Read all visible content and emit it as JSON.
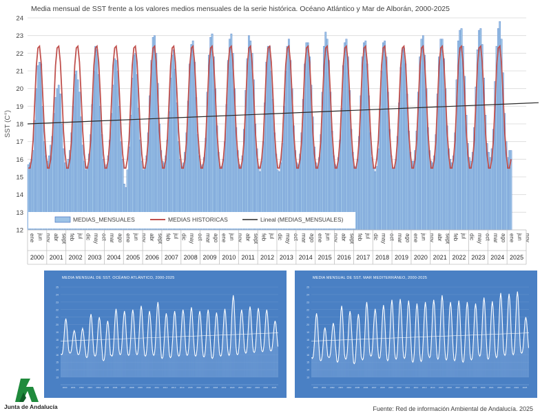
{
  "title": "Media mensual de SST frente a los valores medios mensuales de la serie histórica. Océano Atlántico y Mar de Alborán, 2000-2025",
  "source": "Fuente: Red de información Ambiental de Andalucía.  2025",
  "logo_text": "Junta de Andalucía",
  "colors": {
    "bars": "#9dc3e6",
    "bar_edge": "#4472c4",
    "hist": "#c0504d",
    "trend": "#262626",
    "panel_bg": "#4a80c4"
  },
  "chart_data": [
    {
      "type": "bar+line",
      "title": "Media mensual de SST frente a los valores medios mensuales de la serie histórica. Océano Atlántico y Mar de Alborán, 2000-2025",
      "ylabel": "SST (C°)",
      "ylim": [
        12,
        24
      ],
      "yticks": [
        "12",
        "13",
        "14",
        "15",
        "16",
        "17",
        "18",
        "19",
        "20",
        "21",
        "22",
        "23",
        "24"
      ],
      "grid": true,
      "legend_position": "bottom-left inside",
      "years": [
        "2000",
        "2001",
        "2002",
        "2003",
        "2004",
        "2005",
        "2006",
        "2007",
        "2008",
        "2009",
        "2010",
        "2011",
        "2012",
        "2013",
        "2014",
        "2015",
        "2016",
        "2017",
        "2018",
        "2019",
        "2020",
        "2021",
        "2022",
        "2023",
        "2024",
        "2025"
      ],
      "x_month_labels": [
        "ene",
        "jun",
        "nov",
        "abr",
        "sept",
        "feb",
        "jul",
        "dic",
        "may",
        "oct",
        "mar",
        "ago",
        "ene",
        "jun",
        "nov",
        "abr",
        "sept",
        "feb",
        "jul",
        "dic",
        "may",
        "oct",
        "mar",
        "ago",
        "ene",
        "jun",
        "nov",
        "abr",
        "sept",
        "feb",
        "jul",
        "dic",
        "may",
        "oct",
        "mar",
        "ago",
        "ene",
        "jun",
        "nov",
        "abr",
        "sept",
        "feb",
        "jul",
        "dic",
        "may",
        "oct",
        "mar",
        "ago",
        "ene",
        "jun",
        "nov",
        "abr",
        "sept",
        "feb",
        "jul",
        "dic",
        "may",
        "oct",
        "mar",
        "ago",
        "ene",
        "jun",
        "nov"
      ],
      "series": [
        {
          "name": "MEDIAS_MENSUALES",
          "kind": "bar",
          "monthly_values_by_year": [
            [
              15.7,
              15.8,
              16.0,
              16.5,
              18.2,
              20.0,
              21.3,
              21.5,
              21.4,
              19.0,
              17.0,
              16.2
            ],
            [
              15.9,
              16.2,
              16.8,
              17.3,
              18.6,
              19.5,
              20.0,
              20.2,
              19.7,
              18.0,
              16.6,
              15.8
            ],
            [
              15.5,
              16.0,
              16.5,
              17.5,
              19.0,
              20.8,
              21.0,
              20.5,
              19.8,
              18.4,
              16.8,
              15.9
            ],
            [
              15.4,
              15.6,
              16.3,
              17.4,
              19.1,
              21.0,
              22.4,
              22.2,
              20.8,
              19.0,
              17.4,
              16.0
            ],
            [
              15.5,
              15.7,
              16.2,
              17.1,
              18.6,
              20.2,
              21.7,
              21.6,
              21.0,
              19.0,
              17.0,
              16.0
            ],
            [
              14.6,
              14.4,
              15.4,
              16.7,
              18.5,
              20.6,
              21.9,
              22.0,
              20.8,
              18.9,
              17.1,
              15.9
            ],
            [
              15.4,
              15.5,
              16.2,
              17.5,
              19.6,
              21.6,
              22.9,
              23.0,
              22.0,
              20.3,
              18.0,
              16.5
            ],
            [
              15.9,
              15.8,
              16.2,
              17.1,
              18.7,
              20.6,
              21.9,
              22.2,
              21.1,
              19.2,
              17.0,
              16.0
            ],
            [
              15.6,
              15.8,
              16.4,
              17.5,
              19.3,
              21.4,
              22.5,
              22.7,
              21.5,
              19.5,
              17.4,
              16.2
            ],
            [
              15.6,
              15.7,
              16.1,
              17.2,
              19.8,
              21.9,
              22.9,
              23.1,
              21.8,
              20.0,
              17.9,
              16.4
            ],
            [
              15.5,
              15.6,
              16.0,
              17.0,
              19.1,
              21.6,
              22.8,
              23.1,
              22.0,
              20.0,
              17.8,
              16.5
            ],
            [
              15.7,
              15.6,
              16.2,
              17.7,
              19.9,
              21.7,
              23.0,
              22.7,
              22.0,
              20.5,
              18.0,
              16.6
            ],
            [
              15.6,
              15.3,
              15.9,
              17.0,
              19.2,
              21.5,
              22.4,
              22.4,
              21.0,
              19.4,
              17.5,
              16.3
            ],
            [
              15.4,
              15.3,
              15.8,
              16.9,
              19.0,
              21.0,
              22.4,
              22.8,
              21.6,
              20.0,
              17.9,
              16.5
            ],
            [
              15.8,
              15.7,
              16.3,
              17.5,
              19.4,
              21.4,
              22.6,
              22.6,
              21.8,
              20.2,
              18.4,
              16.7
            ],
            [
              15.8,
              15.6,
              16.1,
              17.4,
              19.8,
              22.4,
              23.2,
              22.8,
              21.6,
              19.8,
              17.6,
              16.2
            ],
            [
              15.7,
              15.6,
              16.1,
              17.1,
              18.9,
              21.3,
              22.6,
              22.8,
              21.8,
              19.9,
              17.7,
              16.4
            ],
            [
              15.6,
              15.5,
              16.0,
              17.3,
              19.6,
              21.8,
              22.6,
              22.7,
              21.4,
              19.6,
              17.5,
              16.1
            ],
            [
              15.5,
              15.3,
              15.6,
              16.6,
              18.8,
              21.0,
              22.6,
              22.7,
              21.8,
              19.8,
              17.7,
              16.2
            ],
            [
              15.5,
              15.5,
              16.0,
              17.3,
              19.2,
              21.2,
              22.2,
              22.3,
              21.4,
              19.7,
              17.6,
              16.4
            ],
            [
              15.9,
              15.9,
              16.5,
              17.6,
              19.8,
              21.8,
              22.8,
              23.0,
              21.9,
              20.0,
              17.8,
              16.5
            ],
            [
              15.9,
              15.8,
              16.2,
              17.4,
              19.7,
              21.8,
              22.8,
              22.8,
              21.7,
              20.0,
              17.9,
              16.6
            ],
            [
              16.0,
              15.8,
              16.2,
              17.5,
              20.5,
              22.7,
              23.3,
              23.4,
              22.4,
              20.7,
              18.5,
              16.9
            ],
            [
              16.1,
              15.9,
              16.4,
              17.8,
              20.1,
              22.2,
              23.3,
              23.4,
              22.5,
              20.6,
              18.5,
              16.9
            ],
            [
              16.4,
              16.1,
              16.6,
              17.7,
              20.4,
              22.4,
              23.4,
              23.8,
              22.8,
              20.9,
              18.6,
              17.0
            ],
            [
              16.1,
              16.5,
              16.5
            ]
          ]
        },
        {
          "name": "MEDIAS HISTORICAS",
          "kind": "line",
          "monthly_climatology": [
            15.5,
            15.5,
            16.0,
            17.1,
            19.2,
            21.3,
            22.3,
            22.4,
            21.5,
            19.7,
            17.6,
            16.3
          ]
        },
        {
          "name": "Lineal (MEDIAS_MENSUALES)",
          "kind": "trendline",
          "y_at_start": 18.0,
          "y_at_end": 19.2
        }
      ]
    },
    {
      "type": "line",
      "title": "MEDIA MENSUAL DE SST. OCÉANO ATLÁNTICO, 2000-2025",
      "min_by_year": [
        16.0,
        16.2,
        16.0,
        15.6,
        15.8,
        15.2,
        15.8,
        16.0,
        15.9,
        16.0,
        15.8,
        15.9,
        15.5,
        15.6,
        15.8,
        15.9,
        15.8,
        15.7,
        15.5,
        15.8,
        15.9,
        16.0,
        16.2,
        16.3,
        16.4,
        16.5
      ],
      "peak_by_year": [
        20.8,
        19.2,
        19.5,
        21.4,
        21.0,
        20.5,
        22.1,
        21.8,
        22.0,
        22.5,
        21.8,
        23.0,
        21.5,
        21.8,
        22.0,
        22.3,
        21.8,
        22.0,
        21.6,
        22.1,
        23.9,
        22.0,
        22.4,
        22.2,
        22.0,
        20.5
      ]
    },
    {
      "type": "line",
      "title": "MEDIA MENSUAL DE SST. MAR MEDITERRÁNEO, 2000-2025",
      "min_by_year": [
        15.5,
        15.2,
        15.6,
        15.0,
        15.4,
        14.8,
        15.3,
        15.8,
        15.5,
        15.2,
        15.4,
        15.5,
        15.0,
        15.1,
        15.6,
        15.4,
        15.3,
        15.2,
        15.0,
        15.3,
        15.8,
        15.4,
        15.6,
        15.9,
        16.0,
        16.2
      ],
      "peak_by_year": [
        21.5,
        19.6,
        20.2,
        22.5,
        21.8,
        21.4,
        23.0,
        22.1,
        22.6,
        23.3,
        23.4,
        23.2,
        22.8,
        23.0,
        23.3,
        23.9,
        23.0,
        23.2,
        23.0,
        22.8,
        23.6,
        23.1,
        24.2,
        24.1,
        24.4,
        21.0
      ]
    }
  ]
}
